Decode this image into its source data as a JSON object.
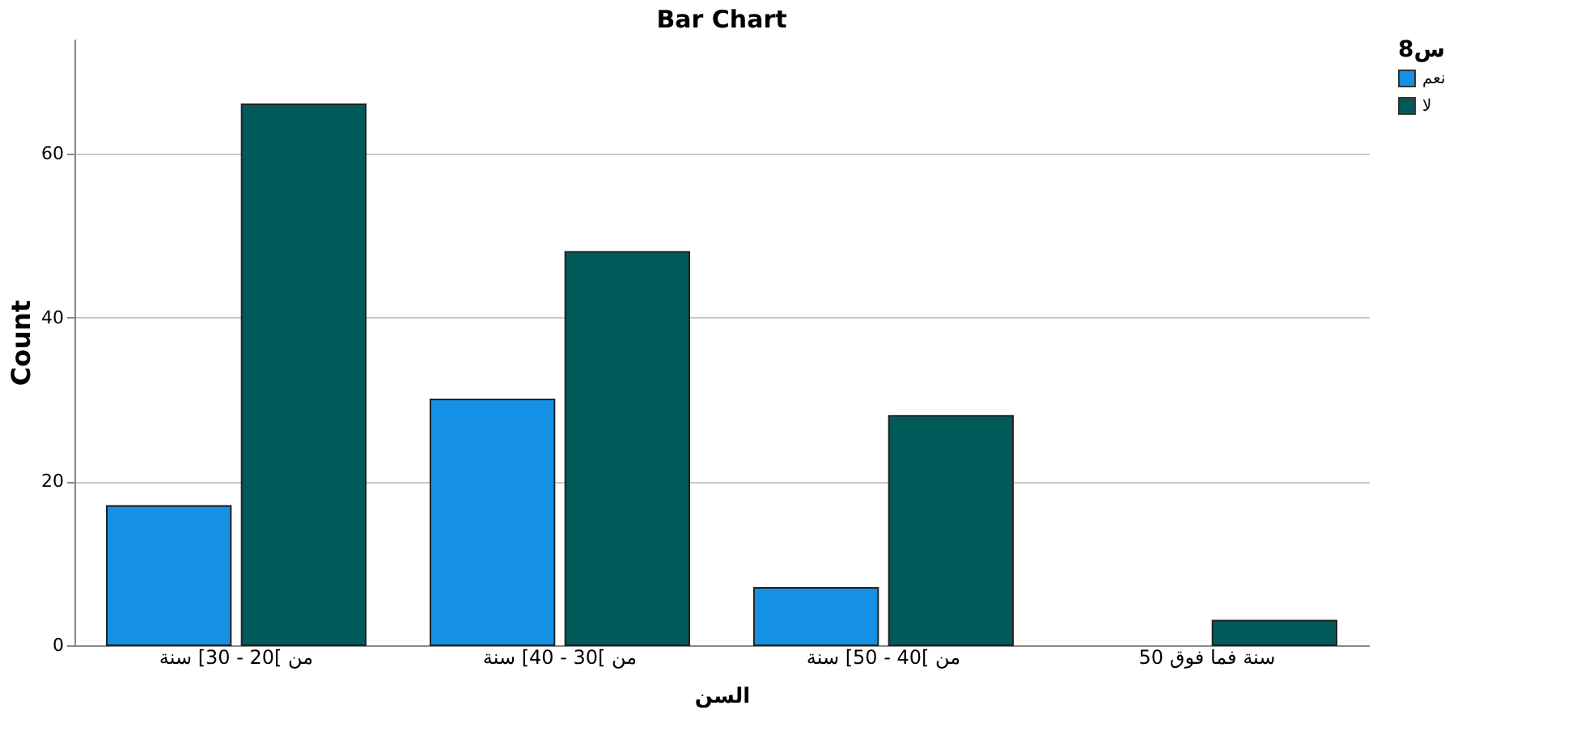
{
  "chart_data": {
    "type": "bar",
    "title": "Bar Chart",
    "xlabel": "السن",
    "ylabel": "Count",
    "legend_title": "س8",
    "categories": [
      "من ]20 - 30] سنة",
      "من ]30 - 40] سنة",
      "من ]40 - 50] سنة",
      "50 سنة فما فوق"
    ],
    "series": [
      {
        "name": "نعم",
        "color": "#1490e4",
        "values": [
          17,
          30,
          7,
          null
        ]
      },
      {
        "name": "لا",
        "color": "#005a5a",
        "values": [
          66,
          48,
          28,
          3
        ]
      }
    ],
    "ylim": [
      0,
      74
    ],
    "yticks": [
      0,
      20,
      40,
      60
    ],
    "grid": "y",
    "legend": "top right"
  }
}
